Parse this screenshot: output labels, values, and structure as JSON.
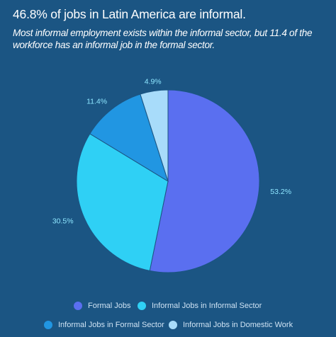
{
  "chart_data": {
    "type": "pie",
    "title": "46.8% of jobs in Latin America are informal.",
    "subtitle": "Most informal employment exists within the informal sector, but 11.4 of the workforce has an informal job in the formal sector.",
    "slices": [
      {
        "name": "Formal Jobs",
        "value": 53.2,
        "label": "53.2%",
        "color": "#5a6ff0"
      },
      {
        "name": "Informal Jobs in Informal Sector",
        "value": 30.5,
        "label": "30.5%",
        "color": "#2fd0f5"
      },
      {
        "name": "Informal Jobs in Formal Sector",
        "value": 11.4,
        "label": "11.4%",
        "color": "#2196e2"
      },
      {
        "name": "Informal Jobs in Domestic Work",
        "value": 4.9,
        "label": "4.9%",
        "color": "#a8dcfa"
      }
    ],
    "legend_position": "bottom"
  },
  "colors": {
    "background": "#1b5583",
    "slice_border": "#1b5583",
    "label_text": "#8ee6ff",
    "legend_text": "#cfe3f4"
  }
}
